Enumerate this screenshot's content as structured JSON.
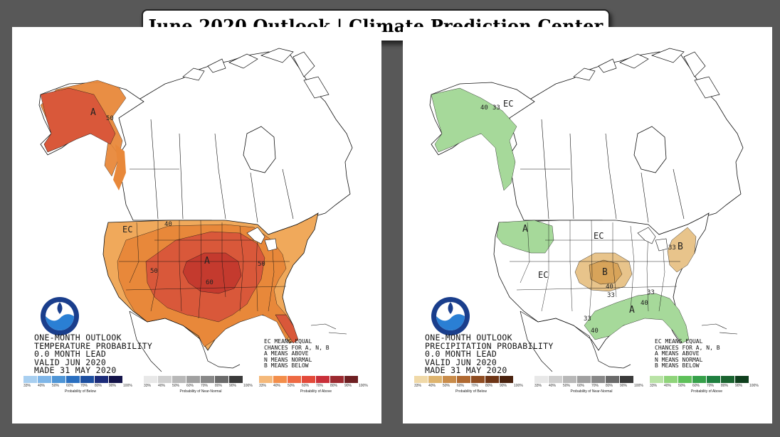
{
  "title": "June 2020 Outlook | Climate Prediction Center",
  "colors": {
    "page_background": "#585858",
    "temp_above_33": "#f0a95b",
    "temp_above_40": "#e8883a",
    "temp_above_50": "#d9583a",
    "temp_above_60": "#c43a2e",
    "precip_above_33": "#a6d99a",
    "precip_below_33": "#e8c48b",
    "precip_below_40": "#d8a45a"
  },
  "temperature_map": {
    "info_lines": [
      "ONE-MONTH OUTLOOK",
      "TEMPERATURE PROBABILITY",
      "0.0 MONTH LEAD",
      "VALID JUN 2020",
      "MADE 31 MAY 2020"
    ],
    "ec_note": [
      "EC MEANS EQUAL",
      "CHANCES FOR A, N, B",
      "A MEANS ABOVE",
      "N MEANS NORMAL",
      "B MEANS BELOW"
    ],
    "labels": {
      "alaska_a": "A",
      "alaska_50": "50",
      "ec": "EC",
      "contour_40": "40",
      "contour_50_west": "50",
      "contour_50_east": "50",
      "contour_60": "60",
      "center_a": "A"
    },
    "legend": {
      "below_title": "Probability of Below",
      "normal_title": "Probability of Near-Normal",
      "above_title": "Probability of Above",
      "below_colors": [
        "#a8cff0",
        "#7fb6e8",
        "#4e95d6",
        "#2a6fc0",
        "#1d4fa0",
        "#1c2c7a",
        "#14144a"
      ],
      "normal_colors": [
        "#e8e8e8",
        "#d0d0d0",
        "#b8b8b8",
        "#a0a0a0",
        "#888888",
        "#6a6a6a",
        "#3a3a3a"
      ],
      "above_colors": [
        "#f5b97a",
        "#f38e4a",
        "#ee6a43",
        "#e34a3a",
        "#c9303a",
        "#9c2a30",
        "#6e1f22"
      ],
      "ticks": [
        "33%",
        "40%",
        "50%",
        "60%",
        "70%",
        "80%",
        "90%",
        "100%"
      ]
    }
  },
  "precipitation_map": {
    "info_lines": [
      "ONE-MONTH OUTLOOK",
      "PRECIPITATION PROBABILITY",
      "0.0 MONTH LEAD",
      "VALID JUN 2020",
      "MADE 31 MAY 2020"
    ],
    "ec_note": [
      "EC MEANS EQUAL",
      "CHANCES FOR A, N, B",
      "A MEANS ABOVE",
      "N MEANS NORMAL",
      "B MEANS BELOW"
    ],
    "labels": {
      "alaska_40": "40",
      "alaska_33": "33",
      "alaska_ec": "EC",
      "nw_a": "A",
      "ec_north": "EC",
      "ec_west": "EC",
      "central_b": "B",
      "central_40": "40",
      "central_33": "33",
      "east_33": "33",
      "east_b": "B",
      "south_33_top": "33",
      "south_a": "A",
      "south_40_east": "40",
      "south_33_west": "33",
      "south_40_west": "40"
    },
    "legend": {
      "below_title": "Probability of Below",
      "normal_title": "Probability of Near-Normal",
      "above_title": "Probability of Above",
      "below_colors": [
        "#f0d9a8",
        "#deb46e",
        "#c98c4a",
        "#b06a32",
        "#8f4d22",
        "#6e3516",
        "#4a220e"
      ],
      "normal_colors": [
        "#e8e8e8",
        "#d0d0d0",
        "#b8b8b8",
        "#a0a0a0",
        "#888888",
        "#6a6a6a",
        "#3a3a3a"
      ],
      "above_colors": [
        "#b9e3a6",
        "#8fd47a",
        "#5ec05a",
        "#36a04a",
        "#1f8040",
        "#1a6430",
        "#0f3f1d"
      ],
      "ticks": [
        "33%",
        "40%",
        "50%",
        "60%",
        "70%",
        "80%",
        "90%",
        "100%"
      ]
    }
  }
}
